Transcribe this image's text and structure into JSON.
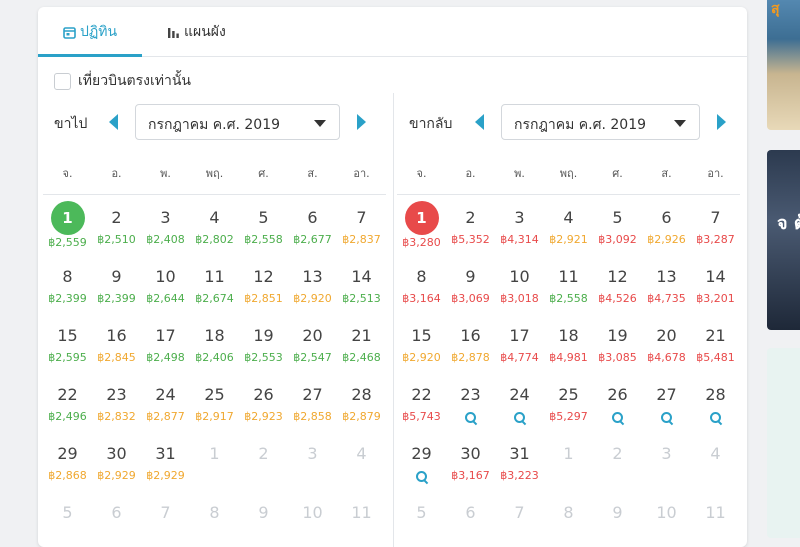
{
  "tabs": [
    {
      "label": "ปฏิทิน",
      "icon": "calendar-icon",
      "active": true
    },
    {
      "label": "แผนผัง",
      "icon": "bar-chart-icon",
      "active": false
    }
  ],
  "direct_only": {
    "label": "เที่ยวบินตรงเท่านั้น",
    "checked": false
  },
  "colors": {
    "accent": "#2aa1c8",
    "cheap": "#4cae4c",
    "mid": "#f0a830",
    "expensive": "#e84a4a",
    "selected_depart": "#4cb95a",
    "selected_return": "#e84a4a"
  },
  "weekdays": [
    "จ.",
    "อ.",
    "พ.",
    "พฤ.",
    "ศ.",
    "ส.",
    "อา."
  ],
  "depart": {
    "label": "ขาไป",
    "month": "กรกฎาคม ค.ศ. 2019",
    "selected_day": "1",
    "days": [
      {
        "d": "1",
        "p": "฿2,559",
        "c": "green"
      },
      {
        "d": "2",
        "p": "฿2,510",
        "c": "green"
      },
      {
        "d": "3",
        "p": "฿2,408",
        "c": "green"
      },
      {
        "d": "4",
        "p": "฿2,802",
        "c": "green"
      },
      {
        "d": "5",
        "p": "฿2,558",
        "c": "green"
      },
      {
        "d": "6",
        "p": "฿2,677",
        "c": "green"
      },
      {
        "d": "7",
        "p": "฿2,837",
        "c": "orange"
      },
      {
        "d": "8",
        "p": "฿2,399",
        "c": "green"
      },
      {
        "d": "9",
        "p": "฿2,399",
        "c": "green"
      },
      {
        "d": "10",
        "p": "฿2,644",
        "c": "green"
      },
      {
        "d": "11",
        "p": "฿2,674",
        "c": "green"
      },
      {
        "d": "12",
        "p": "฿2,851",
        "c": "orange"
      },
      {
        "d": "13",
        "p": "฿2,920",
        "c": "orange"
      },
      {
        "d": "14",
        "p": "฿2,513",
        "c": "green"
      },
      {
        "d": "15",
        "p": "฿2,595",
        "c": "green"
      },
      {
        "d": "16",
        "p": "฿2,845",
        "c": "orange"
      },
      {
        "d": "17",
        "p": "฿2,498",
        "c": "green"
      },
      {
        "d": "18",
        "p": "฿2,406",
        "c": "green"
      },
      {
        "d": "19",
        "p": "฿2,553",
        "c": "green"
      },
      {
        "d": "20",
        "p": "฿2,547",
        "c": "green"
      },
      {
        "d": "21",
        "p": "฿2,468",
        "c": "green"
      },
      {
        "d": "22",
        "p": "฿2,496",
        "c": "green"
      },
      {
        "d": "23",
        "p": "฿2,832",
        "c": "orange"
      },
      {
        "d": "24",
        "p": "฿2,877",
        "c": "orange"
      },
      {
        "d": "25",
        "p": "฿2,917",
        "c": "orange"
      },
      {
        "d": "26",
        "p": "฿2,923",
        "c": "orange"
      },
      {
        "d": "27",
        "p": "฿2,858",
        "c": "orange"
      },
      {
        "d": "28",
        "p": "฿2,879",
        "c": "orange"
      },
      {
        "d": "29",
        "p": "฿2,868",
        "c": "orange"
      },
      {
        "d": "30",
        "p": "฿2,929",
        "c": "orange"
      },
      {
        "d": "31",
        "p": "฿2,929",
        "c": "orange"
      },
      {
        "d": "1",
        "out": true
      },
      {
        "d": "2",
        "out": true
      },
      {
        "d": "3",
        "out": true
      },
      {
        "d": "4",
        "out": true
      },
      {
        "d": "5",
        "out": true
      },
      {
        "d": "6",
        "out": true
      },
      {
        "d": "7",
        "out": true
      },
      {
        "d": "8",
        "out": true
      },
      {
        "d": "9",
        "out": true
      },
      {
        "d": "10",
        "out": true
      },
      {
        "d": "11",
        "out": true
      }
    ]
  },
  "return": {
    "label": "ขากลับ",
    "month": "กรกฎาคม ค.ศ. 2019",
    "selected_day": "1",
    "days": [
      {
        "d": "1",
        "p": "฿3,280",
        "c": "red"
      },
      {
        "d": "2",
        "p": "฿5,352",
        "c": "red"
      },
      {
        "d": "3",
        "p": "฿4,314",
        "c": "red"
      },
      {
        "d": "4",
        "p": "฿2,921",
        "c": "orange"
      },
      {
        "d": "5",
        "p": "฿3,092",
        "c": "red"
      },
      {
        "d": "6",
        "p": "฿2,926",
        "c": "orange"
      },
      {
        "d": "7",
        "p": "฿3,287",
        "c": "red"
      },
      {
        "d": "8",
        "p": "฿3,164",
        "c": "red"
      },
      {
        "d": "9",
        "p": "฿3,069",
        "c": "red"
      },
      {
        "d": "10",
        "p": "฿3,018",
        "c": "red"
      },
      {
        "d": "11",
        "p": "฿2,558",
        "c": "green"
      },
      {
        "d": "12",
        "p": "฿4,526",
        "c": "red"
      },
      {
        "d": "13",
        "p": "฿4,735",
        "c": "red"
      },
      {
        "d": "14",
        "p": "฿3,201",
        "c": "red"
      },
      {
        "d": "15",
        "p": "฿2,920",
        "c": "orange"
      },
      {
        "d": "16",
        "p": "฿2,878",
        "c": "orange"
      },
      {
        "d": "17",
        "p": "฿4,774",
        "c": "red"
      },
      {
        "d": "18",
        "p": "฿4,981",
        "c": "red"
      },
      {
        "d": "19",
        "p": "฿3,085",
        "c": "red"
      },
      {
        "d": "20",
        "p": "฿4,678",
        "c": "red"
      },
      {
        "d": "21",
        "p": "฿5,481",
        "c": "red"
      },
      {
        "d": "22",
        "p": "฿5,743",
        "c": "red"
      },
      {
        "d": "23",
        "search": true
      },
      {
        "d": "24",
        "search": true
      },
      {
        "d": "25",
        "p": "฿5,297",
        "c": "red"
      },
      {
        "d": "26",
        "search": true
      },
      {
        "d": "27",
        "search": true
      },
      {
        "d": "28",
        "search": true
      },
      {
        "d": "29",
        "search": true
      },
      {
        "d": "30",
        "p": "฿3,167",
        "c": "red"
      },
      {
        "d": "31",
        "p": "฿3,223",
        "c": "red"
      },
      {
        "d": "1",
        "out": true
      },
      {
        "d": "2",
        "out": true
      },
      {
        "d": "3",
        "out": true
      },
      {
        "d": "4",
        "out": true
      },
      {
        "d": "5",
        "out": true
      },
      {
        "d": "6",
        "out": true
      },
      {
        "d": "7",
        "out": true
      },
      {
        "d": "8",
        "out": true
      },
      {
        "d": "9",
        "out": true
      },
      {
        "d": "10",
        "out": true
      },
      {
        "d": "11",
        "out": true
      }
    ]
  },
  "side_ads": [
    {
      "text": "สุ"
    },
    {
      "text": "จ ต้"
    },
    {
      "text": ""
    }
  ]
}
